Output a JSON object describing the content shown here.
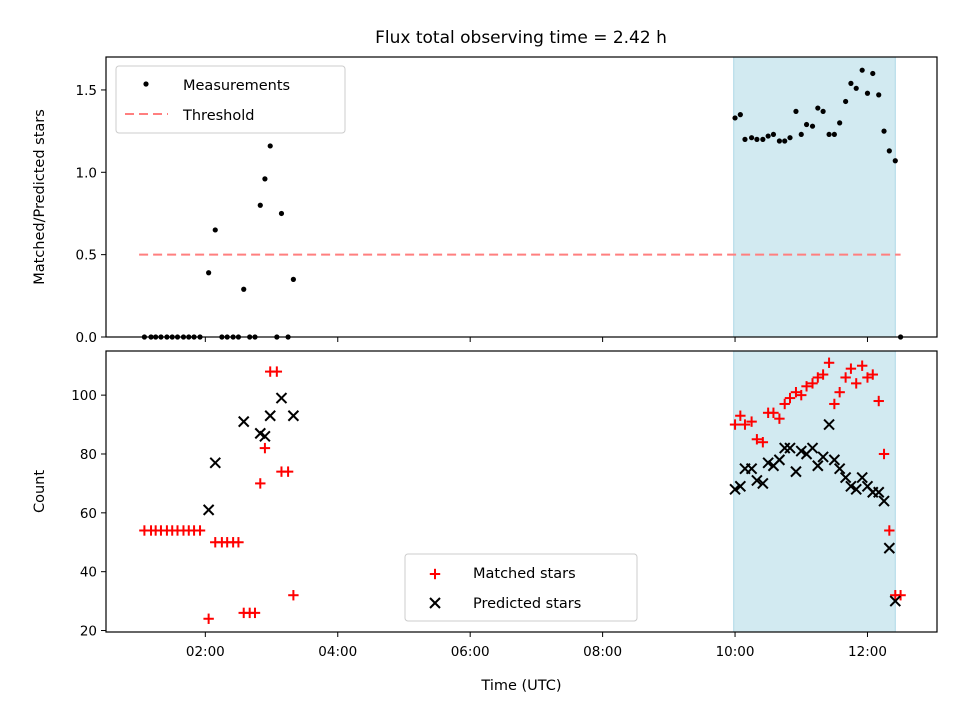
{
  "title": "Flux total observing time = 2.42 h",
  "chart_data": [
    {
      "type": "scatter",
      "ylabel": "Matched/Predicted stars",
      "xlim": [
        0.5,
        13.05
      ],
      "ylim": [
        0,
        1.7
      ],
      "yticks": [
        0.0,
        0.5,
        1.0,
        1.5
      ],
      "ytick_labels": [
        "0.0",
        "0.5",
        "1.0",
        "1.5"
      ],
      "xticks": [
        2,
        4,
        6,
        8,
        10,
        12
      ],
      "shaded_region": {
        "x0": 9.98,
        "x1": 12.42,
        "color": "#add8e6"
      },
      "threshold": {
        "name": "Threshold",
        "y": 0.5,
        "x0": 1.0,
        "x1": 12.5,
        "color": "#ff7f7f"
      },
      "series": [
        {
          "name": "Measurements",
          "color": "#000000",
          "marker": "dot",
          "x": [
            1.08,
            1.18,
            1.25,
            1.33,
            1.42,
            1.5,
            1.58,
            1.67,
            1.75,
            1.83,
            1.92,
            2.05,
            2.15,
            2.25,
            2.33,
            2.42,
            2.5,
            2.58,
            2.67,
            2.75,
            2.83,
            2.9,
            2.98,
            3.08,
            3.15,
            3.25,
            3.33,
            10.0,
            10.08,
            10.15,
            10.25,
            10.33,
            10.42,
            10.5,
            10.58,
            10.67,
            10.75,
            10.83,
            10.92,
            11.0,
            11.08,
            11.17,
            11.25,
            11.33,
            11.42,
            11.5,
            11.58,
            11.67,
            11.75,
            11.83,
            11.92,
            12.0,
            12.08,
            12.17,
            12.25,
            12.33,
            12.42,
            12.5
          ],
          "y": [
            0,
            0,
            0,
            0,
            0,
            0,
            0,
            0,
            0,
            0,
            0,
            0.39,
            0.65,
            0,
            0,
            0,
            0,
            0.29,
            0,
            0,
            0.8,
            0.96,
            1.16,
            0,
            0.75,
            0,
            0.35,
            1.33,
            1.35,
            1.2,
            1.21,
            1.2,
            1.2,
            1.22,
            1.23,
            1.19,
            1.19,
            1.21,
            1.37,
            1.23,
            1.29,
            1.28,
            1.39,
            1.37,
            1.23,
            1.23,
            1.3,
            1.43,
            1.54,
            1.51,
            1.62,
            1.48,
            1.6,
            1.47,
            1.25,
            1.13,
            1.07,
            0
          ]
        }
      ]
    },
    {
      "type": "scatter",
      "ylabel": "Count",
      "xlabel": "Time (UTC)",
      "xlim": [
        0.5,
        13.05
      ],
      "ylim": [
        19.5,
        115
      ],
      "yticks": [
        20,
        40,
        60,
        80,
        100
      ],
      "ytick_labels": [
        "20",
        "40",
        "60",
        "80",
        "100"
      ],
      "xticks": [
        2,
        4,
        6,
        8,
        10,
        12
      ],
      "xtick_labels": [
        "02:00",
        "04:00",
        "06:00",
        "08:00",
        "10:00",
        "12:00"
      ],
      "shaded_region": {
        "x0": 9.98,
        "x1": 12.42,
        "color": "#add8e6"
      },
      "series": [
        {
          "name": "Matched stars",
          "color": "#ff0000",
          "marker": "plus",
          "x": [
            1.08,
            1.18,
            1.25,
            1.33,
            1.42,
            1.5,
            1.58,
            1.67,
            1.75,
            1.83,
            1.92,
            2.05,
            2.15,
            2.25,
            2.33,
            2.42,
            2.5,
            2.58,
            2.67,
            2.75,
            2.83,
            2.9,
            2.98,
            3.08,
            3.15,
            3.25,
            3.33,
            10.0,
            10.08,
            10.15,
            10.25,
            10.33,
            10.42,
            10.5,
            10.58,
            10.67,
            10.75,
            10.83,
            10.92,
            11.0,
            11.08,
            11.17,
            11.25,
            11.33,
            11.42,
            11.5,
            11.58,
            11.67,
            11.75,
            11.83,
            11.92,
            12.0,
            12.08,
            12.17,
            12.25,
            12.33,
            12.42,
            12.5
          ],
          "y": [
            54,
            54,
            54,
            54,
            54,
            54,
            54,
            54,
            54,
            54,
            54,
            24,
            50,
            50,
            50,
            50,
            50,
            26,
            26,
            26,
            70,
            82,
            108,
            108,
            74,
            74,
            32,
            90,
            93,
            90,
            91,
            85,
            84,
            94,
            94,
            92,
            97,
            99,
            101,
            100,
            103,
            104,
            106,
            107,
            111,
            97,
            101,
            106,
            109,
            104,
            110,
            106,
            107,
            98,
            80,
            54,
            32,
            32
          ]
        },
        {
          "name": "Predicted stars",
          "color": "#000000",
          "marker": "x",
          "x": [
            2.05,
            2.15,
            2.58,
            2.83,
            2.9,
            2.98,
            3.15,
            3.33,
            10.0,
            10.08,
            10.15,
            10.25,
            10.33,
            10.42,
            10.5,
            10.58,
            10.67,
            10.75,
            10.83,
            10.92,
            11.0,
            11.08,
            11.17,
            11.25,
            11.33,
            11.42,
            11.5,
            11.58,
            11.67,
            11.75,
            11.83,
            11.92,
            12.0,
            12.08,
            12.17,
            12.25,
            12.33,
            12.42
          ],
          "y": [
            61,
            77,
            91,
            87,
            86,
            93,
            99,
            93,
            68,
            69,
            75,
            75,
            71,
            70,
            77,
            76,
            78,
            82,
            82,
            74,
            81,
            80,
            82,
            76,
            79,
            90,
            78,
            75,
            72,
            69,
            68,
            72,
            69,
            67,
            67,
            64,
            48,
            30
          ]
        }
      ]
    }
  ]
}
